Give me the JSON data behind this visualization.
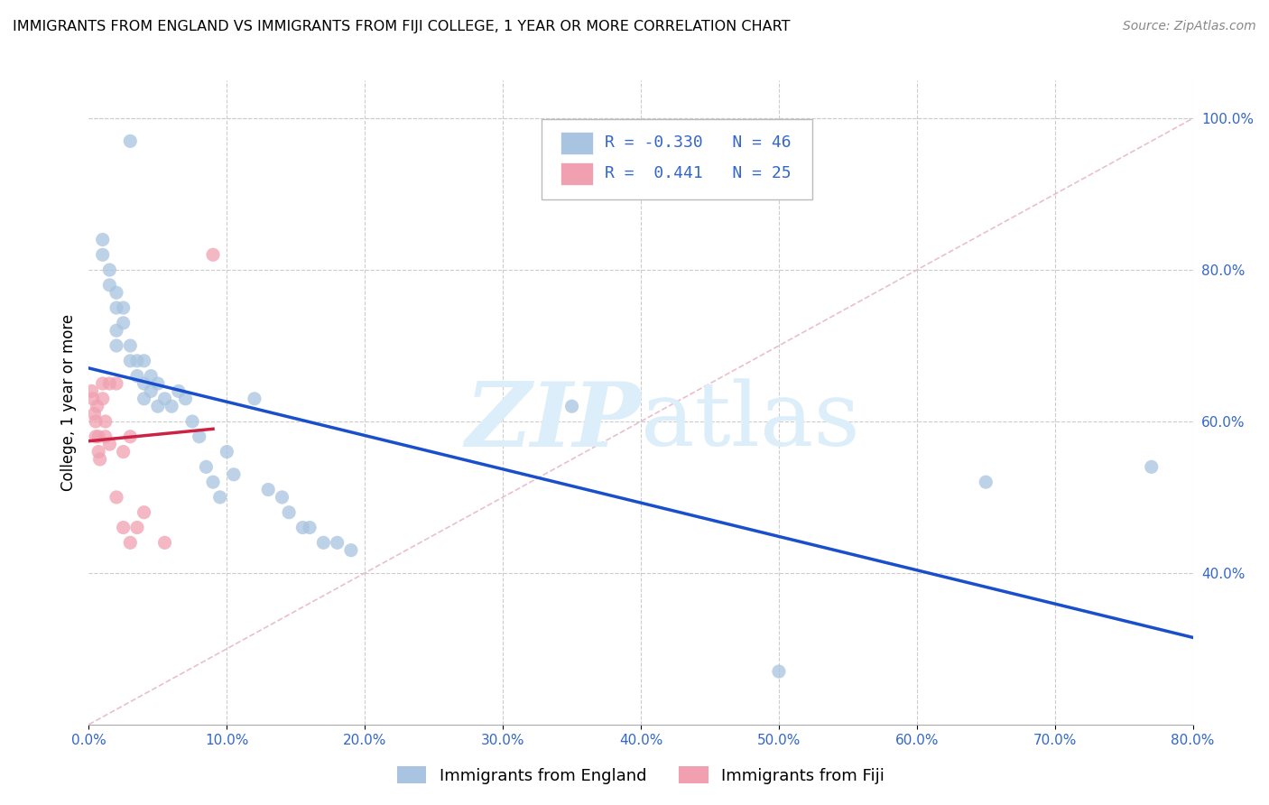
{
  "title": "IMMIGRANTS FROM ENGLAND VS IMMIGRANTS FROM FIJI COLLEGE, 1 YEAR OR MORE CORRELATION CHART",
  "source": "Source: ZipAtlas.com",
  "ylabel": "College, 1 year or more",
  "legend_bottom": [
    "Immigrants from England",
    "Immigrants from Fiji"
  ],
  "r_england": -0.33,
  "n_england": 46,
  "r_fiji": 0.441,
  "n_fiji": 25,
  "xlim": [
    0.0,
    0.8
  ],
  "ylim": [
    0.2,
    1.05
  ],
  "xticks": [
    0.0,
    0.1,
    0.2,
    0.3,
    0.4,
    0.5,
    0.6,
    0.7,
    0.8
  ],
  "yticks_right": [
    0.4,
    0.6,
    0.8,
    1.0
  ],
  "grid_color": "#cccccc",
  "england_color": "#a8c4e0",
  "fiji_color": "#f0a0b0",
  "england_line_color": "#1a4fcc",
  "fiji_line_color": "#cc2244",
  "diagonal_color": "#e8b8c8",
  "watermark_color": "#dceefa",
  "england_x": [
    0.03,
    0.01,
    0.01,
    0.015,
    0.015,
    0.02,
    0.02,
    0.02,
    0.02,
    0.025,
    0.025,
    0.03,
    0.03,
    0.035,
    0.035,
    0.04,
    0.04,
    0.04,
    0.045,
    0.045,
    0.05,
    0.05,
    0.055,
    0.06,
    0.065,
    0.07,
    0.075,
    0.08,
    0.085,
    0.09,
    0.095,
    0.1,
    0.105,
    0.12,
    0.13,
    0.14,
    0.145,
    0.155,
    0.16,
    0.17,
    0.18,
    0.19,
    0.35,
    0.5,
    0.65,
    0.77
  ],
  "england_y": [
    0.97,
    0.84,
    0.82,
    0.8,
    0.78,
    0.77,
    0.75,
    0.72,
    0.7,
    0.75,
    0.73,
    0.7,
    0.68,
    0.68,
    0.66,
    0.68,
    0.65,
    0.63,
    0.66,
    0.64,
    0.65,
    0.62,
    0.63,
    0.62,
    0.64,
    0.63,
    0.6,
    0.58,
    0.54,
    0.52,
    0.5,
    0.56,
    0.53,
    0.63,
    0.51,
    0.5,
    0.48,
    0.46,
    0.46,
    0.44,
    0.44,
    0.43,
    0.62,
    0.27,
    0.52,
    0.54
  ],
  "fiji_x": [
    0.002,
    0.003,
    0.004,
    0.005,
    0.005,
    0.006,
    0.007,
    0.007,
    0.008,
    0.01,
    0.01,
    0.012,
    0.012,
    0.015,
    0.015,
    0.02,
    0.02,
    0.025,
    0.025,
    0.03,
    0.03,
    0.035,
    0.04,
    0.055,
    0.09
  ],
  "fiji_y": [
    0.64,
    0.63,
    0.61,
    0.6,
    0.58,
    0.62,
    0.58,
    0.56,
    0.55,
    0.65,
    0.63,
    0.6,
    0.58,
    0.65,
    0.57,
    0.65,
    0.5,
    0.56,
    0.46,
    0.58,
    0.44,
    0.46,
    0.48,
    0.44,
    0.82
  ]
}
